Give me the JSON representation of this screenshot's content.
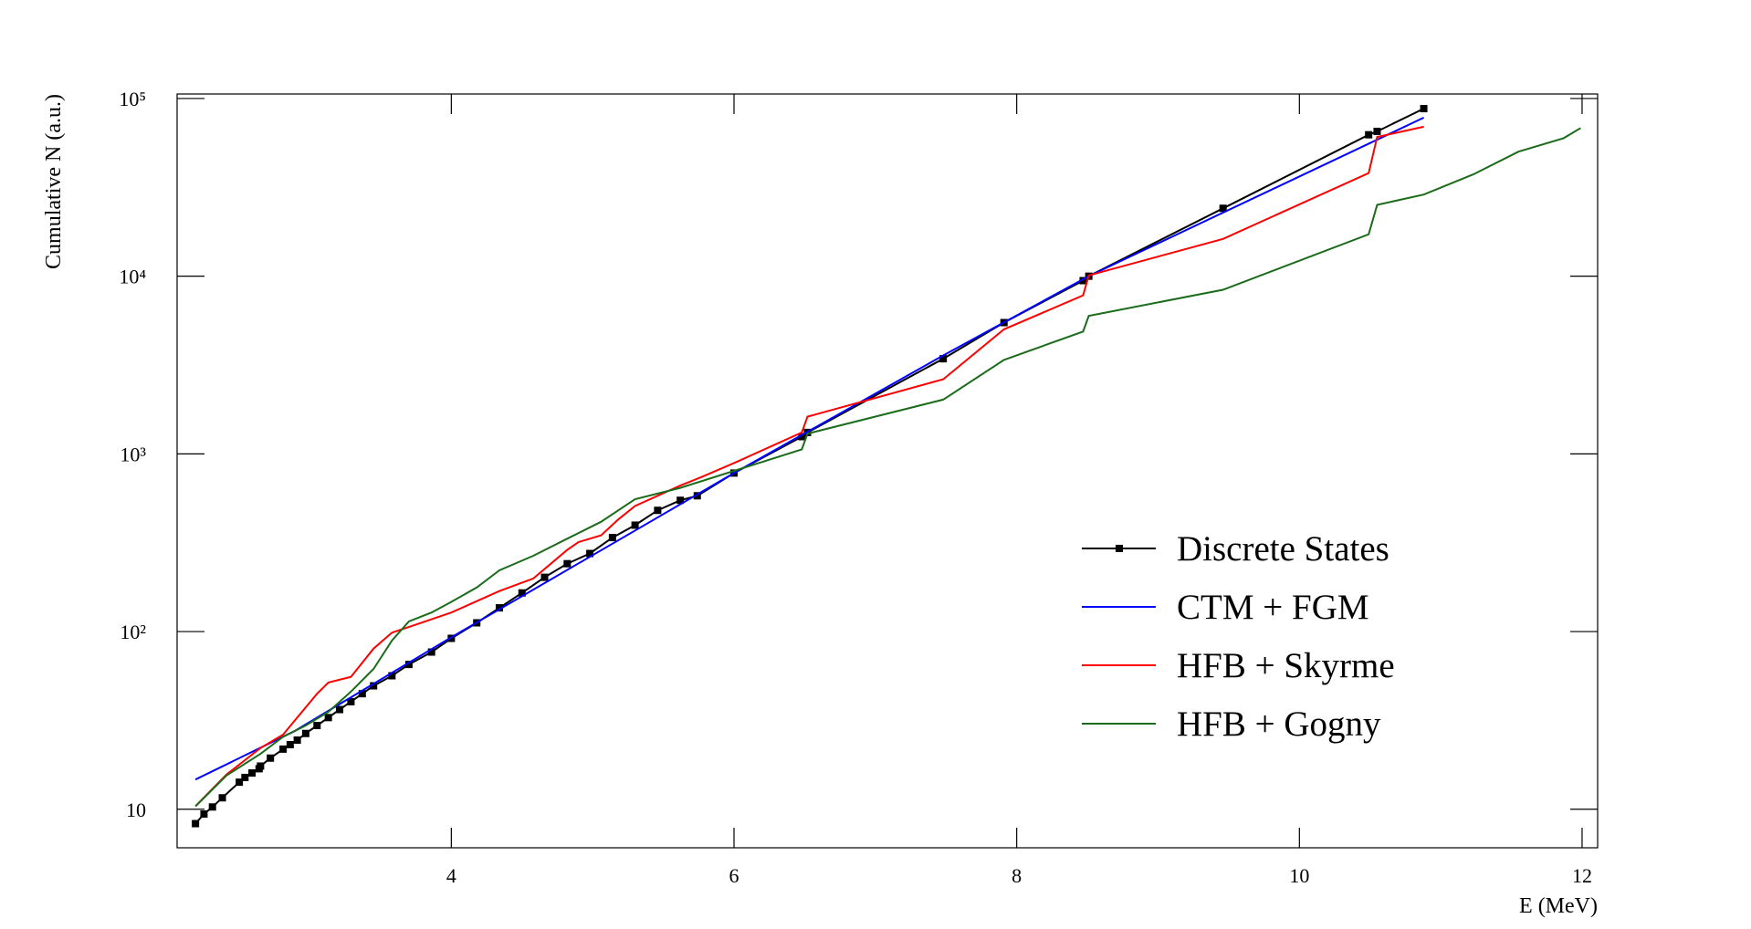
{
  "chart_data": {
    "type": "line",
    "x_label": "E (MeV)",
    "y_label": "Cumulative N (a.u.)",
    "log_y": true,
    "xlim": [
      2.06,
      12.11
    ],
    "ylim": [
      6.07,
      106000
    ],
    "xticks": [
      4,
      6,
      8,
      10,
      12
    ],
    "yticks": [
      10,
      {
        "value": 100,
        "label": "10²"
      },
      {
        "value": 1000,
        "label": "10³"
      },
      {
        "value": 10000,
        "label": "10⁴"
      },
      {
        "value": 100000,
        "label": "10⁵"
      }
    ],
    "series": [
      {
        "name": "Discrete States",
        "color": "#000000",
        "marker": "square",
        "x": [
          2.19,
          2.25,
          2.31,
          2.38,
          2.5,
          2.54,
          2.59,
          2.64,
          2.65,
          2.72,
          2.81,
          2.86,
          2.91,
          2.97,
          3.05,
          3.13,
          3.21,
          3.29,
          3.37,
          3.45,
          3.58,
          3.7,
          3.86,
          4.0,
          4.18,
          4.34,
          4.5,
          4.66,
          4.82,
          4.98,
          5.14,
          5.3,
          5.46,
          5.62,
          5.74,
          6.0,
          6.48,
          6.52,
          7.48,
          7.91,
          8.47,
          8.51,
          9.46,
          10.49,
          10.55,
          10.88
        ],
        "values": [
          8.3,
          9.4,
          10.3,
          11.6,
          14.2,
          15.1,
          16.0,
          16.9,
          17.5,
          19.4,
          21.8,
          23.1,
          24.5,
          26.7,
          29.6,
          32.8,
          36.4,
          40.3,
          44.7,
          49.5,
          56.4,
          65.3,
          76.7,
          91.6,
          112,
          136,
          165,
          202,
          241,
          275,
          338,
          397,
          481,
          548,
          581,
          780,
          1250,
          1320,
          3430,
          5480,
          9440,
          10000,
          24100,
          62500,
          65300,
          87700
        ]
      },
      {
        "name": "CTM + FGM",
        "color": "#0000ff",
        "x": [
          2.19,
          2.89,
          4.0,
          6.0,
          7.48,
          8.51,
          10.88
        ],
        "values": [
          14.7,
          27.5,
          92.9,
          780,
          3580,
          10000,
          78000
        ]
      },
      {
        "name": "HFB + Skyrme",
        "color": "#ff0000",
        "x": [
          2.19,
          2.41,
          2.65,
          2.81,
          2.89,
          3.05,
          3.13,
          3.29,
          3.45,
          3.58,
          3.7,
          4.0,
          4.34,
          4.58,
          4.82,
          4.9,
          5.06,
          5.18,
          5.3,
          5.62,
          5.78,
          6.02,
          6.48,
          6.52,
          7.48,
          7.91,
          8.47,
          8.51,
          9.46,
          10.49,
          10.55,
          10.88
        ],
        "values": [
          10.4,
          15.7,
          22.1,
          26.3,
          31.4,
          44.7,
          51.7,
          55.6,
          80.2,
          98.6,
          106,
          128,
          169,
          199,
          288,
          319,
          348,
          427,
          509,
          663,
          746,
          902,
          1320,
          1620,
          2630,
          5020,
          7800,
          10100,
          16200,
          38000,
          60700,
          69300
        ]
      },
      {
        "name": "HFB + Gogny",
        "color": "#1a6b1a",
        "x": [
          2.19,
          2.41,
          2.65,
          2.81,
          2.97,
          3.13,
          3.29,
          3.45,
          3.58,
          3.7,
          3.86,
          4.0,
          4.18,
          4.34,
          4.58,
          4.82,
          5.06,
          5.3,
          5.62,
          6.0,
          6.48,
          6.52,
          7.48,
          7.91,
          8.47,
          8.51,
          9.46,
          10.49,
          10.55,
          10.88,
          11.23,
          11.55,
          11.87,
          11.99
        ],
        "values": [
          10.4,
          15.5,
          20.5,
          25.6,
          29.6,
          35.3,
          45.9,
          61.6,
          88.9,
          114,
          128,
          147,
          177,
          221,
          267,
          333,
          415,
          556,
          644,
          802,
          1060,
          1300,
          2020,
          3380,
          4880,
          5980,
          8390,
          17200,
          25200,
          28800,
          37400,
          50200,
          59800,
          68200
        ]
      }
    ]
  }
}
